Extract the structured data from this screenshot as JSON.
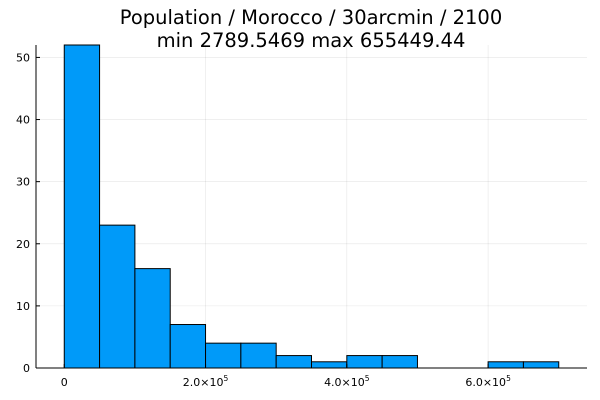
{
  "chart_data": {
    "type": "bar",
    "title_lines": [
      "Population / Morocco / 30arcmin / 2100",
      "min 2789.5469  max 655449.44"
    ],
    "xlabel": "",
    "ylabel": "",
    "bin_edges": [
      0,
      50000,
      100000,
      150000,
      200000,
      250000,
      300000,
      350000,
      400000,
      450000,
      500000,
      550000,
      600000,
      650000,
      700000
    ],
    "values": [
      52,
      23,
      16,
      7,
      4,
      4,
      2,
      1,
      2,
      2,
      0,
      0,
      1,
      1
    ],
    "xlim": [
      -40000,
      740000
    ],
    "ylim": [
      0,
      52
    ],
    "x_ticks": [
      {
        "value": 0,
        "mantissa": "0",
        "exponent": ""
      },
      {
        "value": 200000,
        "mantissa": "2.0×10",
        "exponent": "5"
      },
      {
        "value": 400000,
        "mantissa": "4.0×10",
        "exponent": "5"
      },
      {
        "value": 600000,
        "mantissa": "6.0×10",
        "exponent": "5"
      }
    ],
    "y_ticks": [
      0,
      10,
      20,
      30,
      40,
      50
    ],
    "bar_color": "#009af9",
    "edge_color": "#000000",
    "grid": true,
    "legend": "none"
  }
}
